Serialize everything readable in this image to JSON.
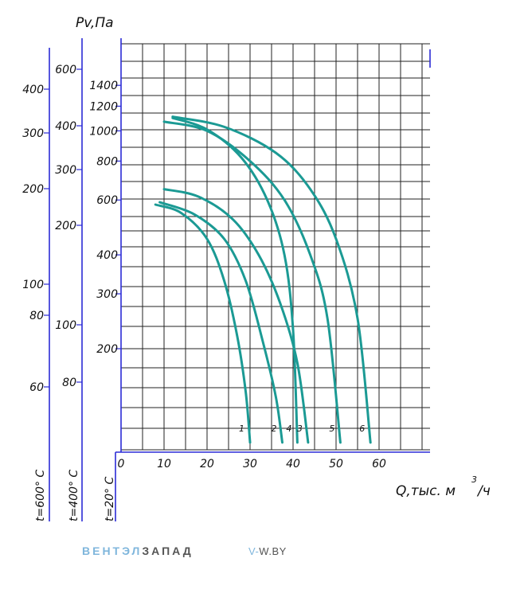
{
  "chart_data": {
    "type": "line",
    "ylabel": "Pv,Па",
    "xlabel_main": "Q,тыс. м",
    "xlabel_sup": "3",
    "xlabel_tail": "/ч",
    "x_ticks": [
      0,
      10,
      20,
      30,
      40,
      50,
      60
    ],
    "xlim": [
      0,
      70
    ],
    "y_scale": "log",
    "y_ticks": [
      200,
      300,
      400,
      600,
      800,
      1000,
      1200,
      1400
    ],
    "axis_temperatures": [
      "t=20° C",
      "t=400° C",
      "t=600° C"
    ],
    "scale_400_ticks": [
      80,
      100,
      200,
      300,
      400,
      600
    ],
    "scale_600_ticks": [
      60,
      80,
      100,
      200,
      300,
      400
    ],
    "series": [
      {
        "name": "1",
        "points": [
          [
            8,
            580
          ],
          [
            14,
            545
          ],
          [
            20,
            450
          ],
          [
            24,
            330
          ],
          [
            27,
            220
          ],
          [
            29,
            145
          ],
          [
            30,
            100
          ]
        ]
      },
      {
        "name": "2",
        "points": [
          [
            9,
            590
          ],
          [
            17,
            540
          ],
          [
            24,
            450
          ],
          [
            29,
            330
          ],
          [
            33,
            210
          ],
          [
            36,
            140
          ],
          [
            37.5,
            100
          ]
        ]
      },
      {
        "name": "3",
        "points": [
          [
            10,
            650
          ],
          [
            18,
            615
          ],
          [
            26,
            520
          ],
          [
            32,
            400
          ],
          [
            37,
            280
          ],
          [
            41,
            180
          ],
          [
            43.5,
            100
          ]
        ]
      },
      {
        "name": "4",
        "points": [
          [
            12,
            1100
          ],
          [
            20,
            1010
          ],
          [
            28,
            820
          ],
          [
            34,
            600
          ],
          [
            38,
            400
          ],
          [
            40,
            230
          ],
          [
            41,
            100
          ]
        ]
      },
      {
        "name": "5",
        "points": [
          [
            10,
            1070
          ],
          [
            20,
            1000
          ],
          [
            30,
            800
          ],
          [
            38,
            600
          ],
          [
            44,
            400
          ],
          [
            48,
            250
          ],
          [
            51,
            100
          ]
        ]
      },
      {
        "name": "6",
        "points": [
          [
            12,
            1110
          ],
          [
            24,
            1030
          ],
          [
            36,
            850
          ],
          [
            44,
            650
          ],
          [
            50,
            450
          ],
          [
            55,
            250
          ],
          [
            58,
            100
          ]
        ]
      }
    ],
    "curve_color": "#1b9a94",
    "axis_color": "#2b2bd6",
    "grid": true
  },
  "brand": {
    "part1": "ВЕНТЭЛ",
    "part2": "ЗАПАД"
  },
  "site": {
    "prefix": "V-",
    "rest": "W.BY"
  }
}
